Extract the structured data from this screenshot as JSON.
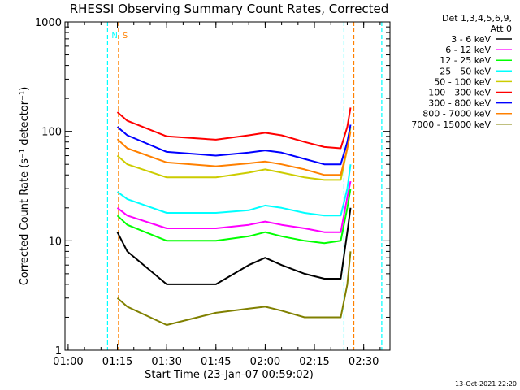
{
  "footer": {
    "timestamp": "13-Oct-2021 22:20"
  },
  "legend": {
    "header_line1": "Det 1,3,4,5,6,9,",
    "header_line2": "Att 0",
    "entries": [
      {
        "label": "3 - 6 keV",
        "color": "#000000"
      },
      {
        "label": "6 - 12 keV",
        "color": "#ff00ff"
      },
      {
        "label": "12 - 25 keV",
        "color": "#00ff00"
      },
      {
        "label": "25 - 50 keV",
        "color": "#00ffff"
      },
      {
        "label": "50 - 100 keV",
        "color": "#cccc00"
      },
      {
        "label": "100 - 300 keV",
        "color": "#ff0000"
      },
      {
        "label": "300 - 800 keV",
        "color": "#0000ff"
      },
      {
        "label": "800 - 7000 keV",
        "color": "#ff8000"
      },
      {
        "label": "7000 - 15000 keV",
        "color": "#808000"
      }
    ]
  },
  "chart_data": {
    "type": "line",
    "title": "RHESSI Observing Summary Count Rates, Corrected",
    "xlabel": "Start Time (23-Jan-07 00:59:02)",
    "ylabel": "Corrected Count Rate (s⁻¹ detector⁻¹)",
    "y_scale": "log",
    "xlim": [
      "00:59:02",
      "02:38:00"
    ],
    "ylim": [
      1,
      1000
    ],
    "x_ticks": [
      "01:00",
      "01:15",
      "01:30",
      "01:45",
      "02:00",
      "02:15",
      "02:30"
    ],
    "y_ticks": [
      "1",
      "10",
      "100",
      "1000"
    ],
    "x": [
      "01:15",
      "01:18",
      "01:30",
      "01:45",
      "01:55",
      "02:00",
      "02:05",
      "02:12",
      "02:18",
      "02:23",
      "02:25",
      "02:26"
    ],
    "series": [
      {
        "name": "3 - 6 keV",
        "color": "#000000",
        "values": [
          12,
          8,
          4,
          4,
          6,
          7,
          6,
          5,
          4.5,
          4.5,
          12,
          20
        ]
      },
      {
        "name": "6 - 12 keV",
        "color": "#ff00ff",
        "values": [
          20,
          17,
          13,
          13,
          14,
          15,
          14,
          13,
          12,
          12,
          25,
          35
        ]
      },
      {
        "name": "12 - 25 keV",
        "color": "#00ff00",
        "values": [
          17,
          14,
          10,
          10,
          11,
          12,
          11,
          10,
          9.5,
          10,
          20,
          30
        ]
      },
      {
        "name": "25 - 50 keV",
        "color": "#00ffff",
        "values": [
          28,
          24,
          18,
          18,
          19,
          21,
          20,
          18,
          17,
          17,
          30,
          50
        ]
      },
      {
        "name": "50 - 100 keV",
        "color": "#cccc00",
        "values": [
          60,
          50,
          38,
          38,
          42,
          45,
          42,
          38,
          36,
          36,
          70,
          110
        ]
      },
      {
        "name": "100 - 300 keV",
        "color": "#ff0000",
        "values": [
          150,
          125,
          90,
          84,
          92,
          97,
          92,
          80,
          72,
          70,
          110,
          165
        ]
      },
      {
        "name": "300 - 800 keV",
        "color": "#0000ff",
        "values": [
          110,
          92,
          65,
          60,
          64,
          67,
          64,
          56,
          50,
          50,
          80,
          115
        ]
      },
      {
        "name": "800 - 7000 keV",
        "color": "#ff8000",
        "values": [
          85,
          70,
          52,
          48,
          51,
          53,
          50,
          45,
          40,
          40,
          70,
          100
        ]
      },
      {
        "name": "7000 - 15000 keV",
        "color": "#808000",
        "values": [
          3,
          2.5,
          1.7,
          2.2,
          2.4,
          2.5,
          2.3,
          2,
          2,
          2,
          4,
          8
        ]
      }
    ],
    "markers": [
      {
        "label": "N",
        "time": "01:12:00",
        "color": "#00ffff"
      },
      {
        "label": "S",
        "time": "01:15:20",
        "color": "#ff8000"
      },
      {
        "label": "",
        "time": "02:24:00",
        "color": "#00ffff"
      },
      {
        "label": "",
        "time": "02:27:00",
        "color": "#ff8000"
      },
      {
        "label": "",
        "time": "02:35:30",
        "color": "#00ffff"
      }
    ]
  }
}
